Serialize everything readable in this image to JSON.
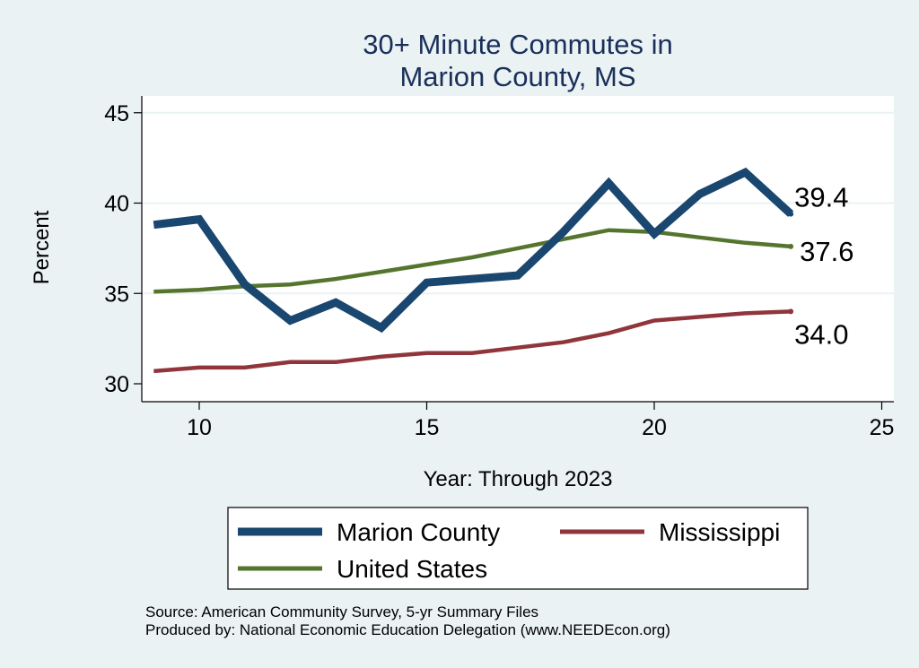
{
  "chart_data": {
    "type": "line",
    "title": [
      "30+ Minute Commutes in",
      "Marion County, MS"
    ],
    "xlabel": "Year: Through 2023",
    "ylabel": "Percent",
    "xlim": [
      9,
      25
    ],
    "ylim": [
      30,
      45
    ],
    "xticks": [
      10,
      15,
      20,
      25
    ],
    "yticks": [
      30,
      35,
      40,
      45
    ],
    "grid": "horizontal",
    "legend_position": "bottom",
    "series": [
      {
        "name": "Marion County",
        "color": "#1a476f",
        "x": [
          9,
          10,
          11,
          12,
          13,
          14,
          15,
          16,
          17,
          18,
          19,
          20,
          21,
          22,
          23
        ],
        "values": [
          38.8,
          39.1,
          35.5,
          33.5,
          34.5,
          33.1,
          35.6,
          35.8,
          36.0,
          38.4,
          41.1,
          38.3,
          40.5,
          41.7,
          39.4
        ],
        "end_label": "39.4"
      },
      {
        "name": "Mississippi",
        "color": "#90353b",
        "x": [
          9,
          10,
          11,
          12,
          13,
          14,
          15,
          16,
          17,
          18,
          19,
          20,
          21,
          22,
          23
        ],
        "values": [
          30.7,
          30.9,
          30.9,
          31.2,
          31.2,
          31.5,
          31.7,
          31.7,
          32.0,
          32.3,
          32.8,
          33.5,
          33.7,
          33.9,
          34.0
        ],
        "end_label": "34.0"
      },
      {
        "name": "United States",
        "color": "#55752f",
        "x": [
          9,
          10,
          11,
          12,
          13,
          14,
          15,
          16,
          17,
          18,
          19,
          20,
          21,
          22,
          23
        ],
        "values": [
          35.1,
          35.2,
          35.4,
          35.5,
          35.8,
          36.2,
          36.6,
          37.0,
          37.5,
          38.0,
          38.5,
          38.4,
          38.1,
          37.8,
          37.6
        ],
        "end_label": "37.6"
      }
    ],
    "notes": [
      "Source: American Community Survey, 5-yr Summary Files",
      "Produced by: National Economic Education Delegation (www.NEEDEcon.org)"
    ]
  }
}
